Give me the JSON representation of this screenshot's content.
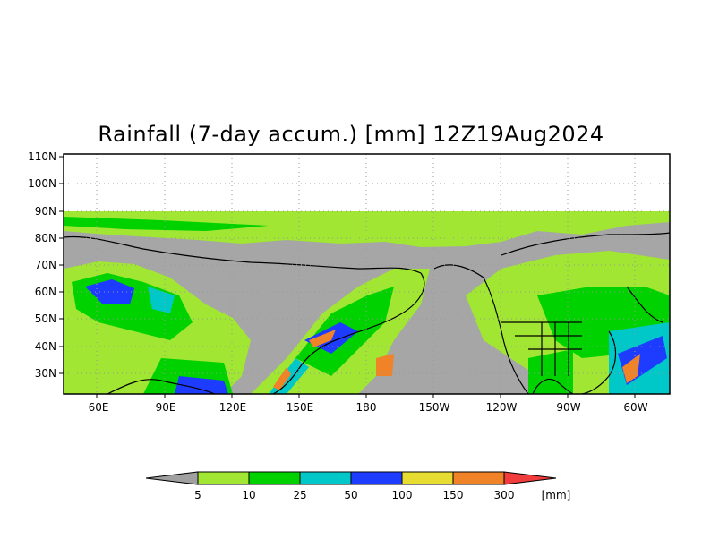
{
  "title": "Rainfall (7-day accum.) [mm] 12Z19Aug2024",
  "map": {
    "lat_labels": [
      "110N",
      "100N",
      "90N",
      "80N",
      "70N",
      "60N",
      "50N",
      "40N",
      "30N"
    ],
    "lon_labels": [
      "60E",
      "90E",
      "120E",
      "150E",
      "180",
      "150W",
      "120W",
      "90W",
      "60W"
    ]
  },
  "legend": {
    "unit": "[mm]",
    "thresholds": [
      "5",
      "10",
      "25",
      "50",
      "100",
      "150",
      "300"
    ],
    "colors": [
      "#a0a0a0",
      "#a0e632",
      "#00d200",
      "#00c8c8",
      "#1e3cff",
      "#e6dc32",
      "#f08228",
      "#f03c3c"
    ]
  },
  "colors": {
    "land_dry": "#a6a6a6",
    "light": "#a0e632",
    "moderate": "#00d200",
    "heavy": "#00c8c8",
    "very_heavy": "#1e3cff",
    "extreme": "#e6dc32",
    "orange": "#f08228",
    "red": "#f03c3c"
  }
}
